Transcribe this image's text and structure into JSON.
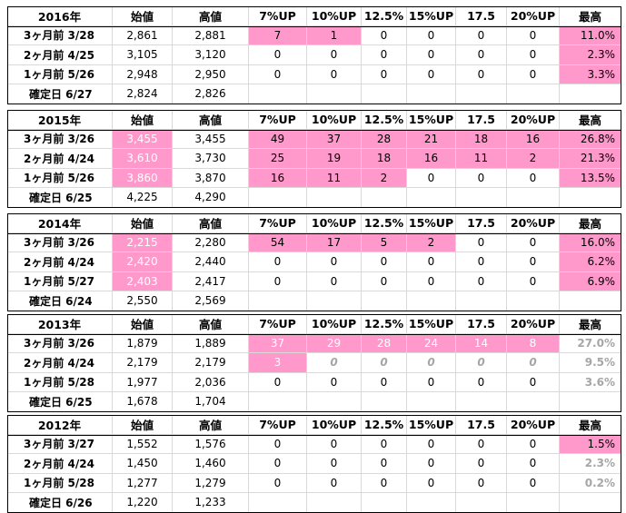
{
  "blocks": [
    {
      "year": "2016年",
      "headers": [
        "始値",
        "高値",
        "7%UP",
        "10%UP",
        "12.5%",
        "15%UP",
        "17.5",
        "20%UP",
        "最高"
      ],
      "rows": [
        {
          "label": "3ヶ月前 3/28",
          "open": "2,861",
          "high": "2,881",
          "vals": [
            "7",
            "1",
            "0",
            "0",
            "0",
            "0"
          ],
          "max": "11.0%",
          "openPink": false,
          "valPink": [
            true,
            true,
            false,
            false,
            false,
            false
          ],
          "maxPink": true,
          "maxGray": false
        },
        {
          "label": "2ヶ月前 4/25",
          "open": "3,105",
          "high": "3,120",
          "vals": [
            "0",
            "0",
            "0",
            "0",
            "0",
            "0"
          ],
          "max": "2.3%",
          "openPink": false,
          "valPink": [
            false,
            false,
            false,
            false,
            false,
            false
          ],
          "maxPink": true,
          "maxGray": false
        },
        {
          "label": "1ヶ月前 5/26",
          "open": "2,948",
          "high": "2,950",
          "vals": [
            "0",
            "0",
            "0",
            "0",
            "0",
            "0"
          ],
          "max": "3.3%",
          "openPink": false,
          "valPink": [
            false,
            false,
            false,
            false,
            false,
            false
          ],
          "maxPink": true,
          "maxGray": false
        },
        {
          "label": "確定日 6/27",
          "open": "2,824",
          "high": "2,826",
          "vals": [
            "",
            "",
            "",
            "",
            "",
            ""
          ],
          "max": "",
          "openPink": false,
          "valPink": [
            false,
            false,
            false,
            false,
            false,
            false
          ],
          "maxPink": false,
          "maxGray": false
        }
      ]
    },
    {
      "year": "2015年",
      "headers": [
        "始値",
        "高値",
        "7%UP",
        "10%UP",
        "12.5%",
        "15%UP",
        "17.5",
        "20%UP",
        "最高"
      ],
      "rows": [
        {
          "label": "3ヶ月前 3/26",
          "open": "3,455",
          "high": "3,455",
          "vals": [
            "49",
            "37",
            "28",
            "21",
            "18",
            "16"
          ],
          "max": "26.8%",
          "openPink": true,
          "valPink": [
            true,
            true,
            true,
            true,
            true,
            true
          ],
          "maxPink": true,
          "maxGray": false
        },
        {
          "label": "2ヶ月前 4/24",
          "open": "3,610",
          "high": "3,730",
          "vals": [
            "25",
            "19",
            "18",
            "16",
            "11",
            "2"
          ],
          "max": "21.3%",
          "openPink": true,
          "valPink": [
            true,
            true,
            true,
            true,
            true,
            true
          ],
          "maxPink": true,
          "maxGray": false
        },
        {
          "label": "1ヶ月前 5/26",
          "open": "3,860",
          "high": "3,870",
          "vals": [
            "16",
            "11",
            "2",
            "0",
            "0",
            "0"
          ],
          "max": "13.5%",
          "openPink": true,
          "valPink": [
            true,
            true,
            true,
            false,
            false,
            false
          ],
          "maxPink": true,
          "maxGray": false
        },
        {
          "label": "確定日 6/25",
          "open": "4,225",
          "high": "4,290",
          "vals": [
            "",
            "",
            "",
            "",
            "",
            ""
          ],
          "max": "",
          "openPink": false,
          "valPink": [
            false,
            false,
            false,
            false,
            false,
            false
          ],
          "maxPink": false,
          "maxGray": false
        }
      ]
    },
    {
      "year": "2014年",
      "headers": [
        "始値",
        "高値",
        "7%UP",
        "10%UP",
        "12.5%",
        "15%UP",
        "17.5",
        "20%UP",
        "最高"
      ],
      "rows": [
        {
          "label": "3ヶ月前 3/26",
          "open": "2,215",
          "high": "2,280",
          "vals": [
            "54",
            "17",
            "5",
            "2",
            "0",
            "0"
          ],
          "max": "16.0%",
          "openPink": true,
          "valPink": [
            true,
            true,
            true,
            true,
            false,
            false
          ],
          "maxPink": true,
          "maxGray": false
        },
        {
          "label": "2ヶ月前 4/24",
          "open": "2,420",
          "high": "2,440",
          "vals": [
            "0",
            "0",
            "0",
            "0",
            "0",
            "0"
          ],
          "max": "6.2%",
          "openPink": true,
          "valPink": [
            false,
            false,
            false,
            false,
            false,
            false
          ],
          "maxPink": true,
          "maxGray": false
        },
        {
          "label": "1ヶ月前 5/27",
          "open": "2,403",
          "high": "2,417",
          "vals": [
            "0",
            "0",
            "0",
            "0",
            "0",
            "0"
          ],
          "max": "6.9%",
          "openPink": true,
          "valPink": [
            false,
            false,
            false,
            false,
            false,
            false
          ],
          "maxPink": true,
          "maxGray": false
        },
        {
          "label": "確定日 6/24",
          "open": "2,550",
          "high": "2,569",
          "vals": [
            "",
            "",
            "",
            "",
            "",
            ""
          ],
          "max": "",
          "openPink": false,
          "valPink": [
            false,
            false,
            false,
            false,
            false,
            false
          ],
          "maxPink": false,
          "maxGray": false
        }
      ]
    },
    {
      "year": "2013年",
      "headers": [
        "始値",
        "高値",
        "7%UP",
        "10%UP",
        "12.5%",
        "15%UP",
        "17.5",
        "20%UP",
        "最高"
      ],
      "rows": [
        {
          "label": "3ヶ月前 3/26",
          "open": "1,879",
          "high": "1,889",
          "vals": [
            "37",
            "29",
            "28",
            "24",
            "14",
            "8"
          ],
          "max": "27.0%",
          "openPink": false,
          "valPink": [
            true,
            true,
            true,
            true,
            true,
            true
          ],
          "maxPink": false,
          "maxGray": true
        },
        {
          "label": "2ヶ月前 4/24",
          "open": "2,179",
          "high": "2,179",
          "vals": [
            "3",
            "0",
            "0",
            "0",
            "0",
            "0"
          ],
          "max": "9.5%",
          "openPink": false,
          "valPink": [
            true,
            false,
            false,
            false,
            false,
            false
          ],
          "maxPink": false,
          "maxGray": true,
          "grayVals": true
        },
        {
          "label": "1ヶ月前 5/28",
          "open": "1,977",
          "high": "2,036",
          "vals": [
            "0",
            "0",
            "0",
            "0",
            "0",
            "0"
          ],
          "max": "3.6%",
          "openPink": false,
          "valPink": [
            false,
            false,
            false,
            false,
            false,
            false
          ],
          "maxPink": false,
          "maxGray": true
        },
        {
          "label": "確定日 6/25",
          "open": "1,678",
          "high": "1,704",
          "vals": [
            "",
            "",
            "",
            "",
            "",
            ""
          ],
          "max": "",
          "openPink": false,
          "valPink": [
            false,
            false,
            false,
            false,
            false,
            false
          ],
          "maxPink": false,
          "maxGray": false
        }
      ]
    },
    {
      "year": "2012年",
      "headers": [
        "始値",
        "高値",
        "7%UP",
        "10%UP",
        "12.5%",
        "15%UP",
        "17.5",
        "20%UP",
        "最高"
      ],
      "rows": [
        {
          "label": "3ヶ月前 3/27",
          "open": "1,552",
          "high": "1,576",
          "vals": [
            "0",
            "0",
            "0",
            "0",
            "0",
            "0"
          ],
          "max": "1.5%",
          "openPink": false,
          "valPink": [
            false,
            false,
            false,
            false,
            false,
            false
          ],
          "maxPink": true,
          "maxGray": false
        },
        {
          "label": "2ヶ月前 4/24",
          "open": "1,450",
          "high": "1,460",
          "vals": [
            "0",
            "0",
            "0",
            "0",
            "0",
            "0"
          ],
          "max": "2.3%",
          "openPink": false,
          "valPink": [
            false,
            false,
            false,
            false,
            false,
            false
          ],
          "maxPink": false,
          "maxGray": true
        },
        {
          "label": "1ヶ月前 5/28",
          "open": "1,277",
          "high": "1,279",
          "vals": [
            "0",
            "0",
            "0",
            "0",
            "0",
            "0"
          ],
          "max": "0.2%",
          "openPink": false,
          "valPink": [
            false,
            false,
            false,
            false,
            false,
            false
          ],
          "maxPink": false,
          "maxGray": true
        },
        {
          "label": "確定日 6/26",
          "open": "1,220",
          "high": "1,233",
          "vals": [
            "",
            "",
            "",
            "",
            "",
            ""
          ],
          "max": "",
          "openPink": false,
          "valPink": [
            false,
            false,
            false,
            false,
            false,
            false
          ],
          "maxPink": false,
          "maxGray": false
        }
      ]
    }
  ],
  "colors": {
    "pink": "#ff99cc",
    "gridline": "#d9d9d9",
    "grayText": "#a6a6a6"
  }
}
